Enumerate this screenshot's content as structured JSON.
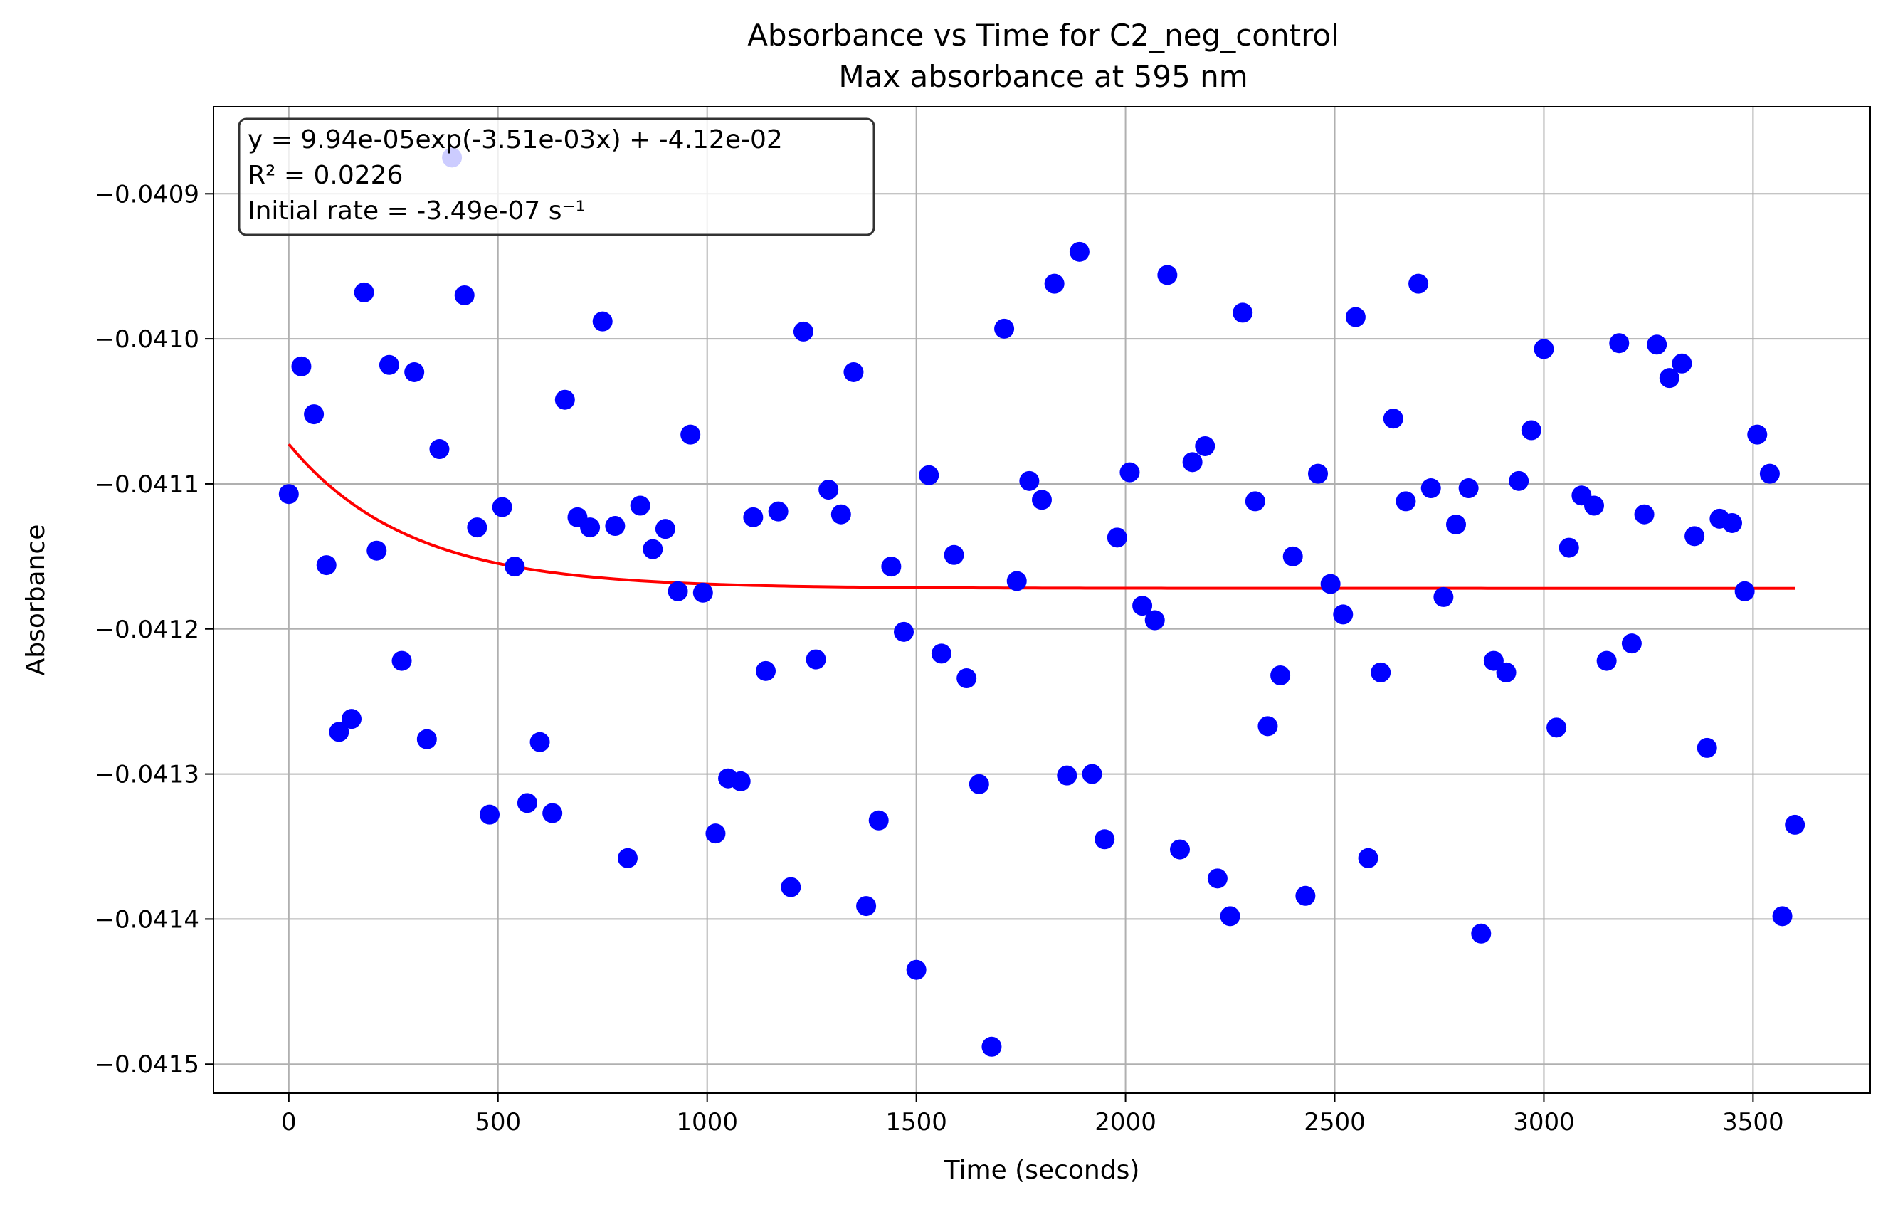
{
  "chart_data": {
    "type": "scatter",
    "title": "Absorbance vs Time for C2_neg_control",
    "subtitle": "Max absorbance at 595 nm",
    "xlabel": "Time (seconds)",
    "ylabel": "Absorbance",
    "xlim": [
      -180,
      3780
    ],
    "ylim": [
      -0.04152,
      -0.04084
    ],
    "xticks": [
      0,
      500,
      1000,
      1500,
      2000,
      2500,
      3000,
      3500
    ],
    "xtick_labels": [
      "0",
      "500",
      "1000",
      "1500",
      "2000",
      "2500",
      "3000",
      "3500"
    ],
    "yticks": [
      -0.0415,
      -0.0414,
      -0.0413,
      -0.0412,
      -0.0411,
      -0.041,
      -0.0409
    ],
    "ytick_labels": [
      "−0.0415",
      "−0.0414",
      "−0.0413",
      "−0.0412",
      "−0.0411",
      "−0.0410",
      "−0.0409"
    ],
    "grid": true,
    "annotation_lines": [
      "y = 9.94e-05exp(-3.51e-03x) + -4.12e-02",
      "R² = 0.0226",
      "Initial rate = -3.49e-07 s⁻¹"
    ],
    "fit": {
      "a": 9.94e-05,
      "b": -0.00351,
      "c": -0.041172,
      "x_start": 0,
      "x_end": 3600,
      "color": "#ff0000"
    },
    "marker_color": "#0000ff",
    "x": [
      0,
      30,
      60,
      90,
      120,
      150,
      180,
      210,
      240,
      270,
      300,
      330,
      360,
      390,
      420,
      450,
      480,
      510,
      540,
      570,
      600,
      630,
      660,
      690,
      720,
      750,
      780,
      810,
      840,
      870,
      900,
      930,
      960,
      990,
      1020,
      1050,
      1080,
      1110,
      1140,
      1170,
      1200,
      1230,
      1260,
      1290,
      1320,
      1350,
      1380,
      1410,
      1440,
      1470,
      1500,
      1530,
      1560,
      1590,
      1620,
      1650,
      1680,
      1710,
      1740,
      1770,
      1800,
      1830,
      1860,
      1890,
      1920,
      1950,
      1980,
      2010,
      2040,
      2070,
      2100,
      2130,
      2160,
      2190,
      2220,
      2250,
      2280,
      2310,
      2340,
      2370,
      2400,
      2430,
      2460,
      2490,
      2520,
      2550,
      2580,
      2610,
      2640,
      2670,
      2700,
      2730,
      2760,
      2790,
      2820,
      2850,
      2880,
      2910,
      2940,
      2970,
      3000,
      3030,
      3060,
      3090,
      3120,
      3150,
      3180,
      3210,
      3240,
      3270,
      3300,
      3330,
      3360,
      3390,
      3420,
      3450,
      3480,
      3510,
      3540,
      3570,
      3600
    ],
    "y": [
      -0.041107,
      -0.041019,
      -0.041052,
      -0.041156,
      -0.041271,
      -0.041262,
      -0.040968,
      -0.041146,
      -0.041018,
      -0.041222,
      -0.041023,
      -0.041276,
      -0.041076,
      -0.040875,
      -0.04097,
      -0.04113,
      -0.041328,
      -0.041116,
      -0.041157,
      -0.04132,
      -0.041278,
      -0.041327,
      -0.041042,
      -0.041123,
      -0.04113,
      -0.040988,
      -0.041129,
      -0.041358,
      -0.041115,
      -0.041145,
      -0.041131,
      -0.041174,
      -0.041066,
      -0.041175,
      -0.041341,
      -0.041303,
      -0.041305,
      -0.041123,
      -0.041229,
      -0.041119,
      -0.041378,
      -0.040995,
      -0.041221,
      -0.041104,
      -0.041121,
      -0.041023,
      -0.041391,
      -0.041332,
      -0.041157,
      -0.041202,
      -0.041435,
      -0.041094,
      -0.041217,
      -0.041149,
      -0.041234,
      -0.041307,
      -0.041488,
      -0.040993,
      -0.041167,
      -0.041098,
      -0.041111,
      -0.040962,
      -0.041301,
      -0.04094,
      -0.0413,
      -0.041345,
      -0.041137,
      -0.041092,
      -0.041184,
      -0.041194,
      -0.040956,
      -0.041352,
      -0.041085,
      -0.041074,
      -0.041372,
      -0.041398,
      -0.040982,
      -0.041112,
      -0.041267,
      -0.041232,
      -0.04115,
      -0.041384,
      -0.041093,
      -0.041169,
      -0.04119,
      -0.040985,
      -0.041358,
      -0.04123,
      -0.041055,
      -0.041112,
      -0.040962,
      -0.041103,
      -0.041178,
      -0.041128,
      -0.041103,
      -0.04141,
      -0.041222,
      -0.04123,
      -0.041098,
      -0.041063,
      -0.041007,
      -0.041268,
      -0.041144,
      -0.041108,
      -0.041115,
      -0.041222,
      -0.041003,
      -0.04121,
      -0.041121,
      -0.041004,
      -0.041027,
      -0.041017,
      -0.041136,
      -0.041282,
      -0.041124,
      -0.041127,
      -0.041174,
      -0.041066,
      -0.041093,
      -0.041398,
      -0.041335
    ]
  }
}
